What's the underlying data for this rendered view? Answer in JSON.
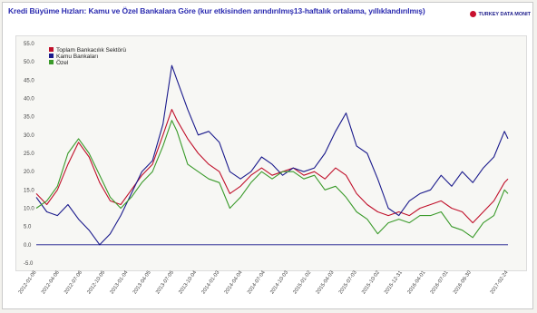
{
  "title": "Kredi Büyüme Hızları: Kamu ve Özel Bankalara Göre (kur etkisinden arındırılmış13-haftalık ortalama, yıllıklandırılmış)",
  "brand_label": "TURKEY DATA MONIT",
  "chart_data": {
    "type": "line",
    "title": "Kredi Büyüme Hızları: Kamu ve Özel Bankalara Göre (kur etkisinden arındırılmış13-haftalık ortalama, yıllıklandırılmış)",
    "xlabel": "",
    "ylabel": "",
    "ylim": [
      -5,
      55
    ],
    "yticks": [
      "55.0",
      "50.0",
      "45.0",
      "40.0",
      "35.0",
      "30.0",
      "25.0",
      "20.0",
      "15.0",
      "10.0",
      "5.0",
      "0.0",
      "-5.0"
    ],
    "x_ticks": [
      "2012-01-06",
      "2012-04-06",
      "2012-07-06",
      "2012-10-05",
      "2013-01-04",
      "2013-04-05",
      "2013-07-05",
      "2013-10-04",
      "2014-01-03",
      "2014-04-04",
      "2014-07-04",
      "2014-10-03",
      "2015-01-02",
      "2015-04-03",
      "2015-07-03",
      "2015-10-02",
      "2015-12-31",
      "2016-04-01",
      "2016-07-01",
      "2016-09-30",
      "2017-02-24"
    ],
    "grid": false,
    "legend_position": "top-left",
    "series": [
      {
        "name": "Toplam Bankacılık Sektörü",
        "color": "#c0102a",
        "values": [
          [
            "2012-01-06",
            14
          ],
          [
            "2012-02-17",
            11
          ],
          [
            "2012-03-30",
            15
          ],
          [
            "2012-05-11",
            22
          ],
          [
            "2012-06-22",
            28
          ],
          [
            "2012-08-03",
            24
          ],
          [
            "2012-09-14",
            17
          ],
          [
            "2012-10-26",
            12
          ],
          [
            "2012-12-07",
            11
          ],
          [
            "2013-01-18",
            15
          ],
          [
            "2013-03-01",
            19
          ],
          [
            "2013-04-12",
            22
          ],
          [
            "2013-05-24",
            30
          ],
          [
            "2013-06-28",
            37
          ],
          [
            "2013-07-19",
            34
          ],
          [
            "2013-08-30",
            29
          ],
          [
            "2013-10-11",
            25
          ],
          [
            "2013-11-22",
            22
          ],
          [
            "2014-01-03",
            20
          ],
          [
            "2014-02-14",
            14
          ],
          [
            "2014-03-28",
            16
          ],
          [
            "2014-05-09",
            19
          ],
          [
            "2014-06-20",
            21
          ],
          [
            "2014-08-01",
            19
          ],
          [
            "2014-09-12",
            20
          ],
          [
            "2014-10-24",
            21
          ],
          [
            "2014-12-05",
            19
          ],
          [
            "2015-01-16",
            20
          ],
          [
            "2015-02-27",
            18
          ],
          [
            "2015-04-10",
            21
          ],
          [
            "2015-05-22",
            19
          ],
          [
            "2015-07-03",
            14
          ],
          [
            "2015-08-14",
            11
          ],
          [
            "2015-09-25",
            9
          ],
          [
            "2015-11-06",
            8
          ],
          [
            "2015-12-18",
            9
          ],
          [
            "2016-01-29",
            8
          ],
          [
            "2016-03-11",
            10
          ],
          [
            "2016-04-22",
            11
          ],
          [
            "2016-06-03",
            12
          ],
          [
            "2016-07-15",
            10
          ],
          [
            "2016-08-26",
            9
          ],
          [
            "2016-10-07",
            6
          ],
          [
            "2016-11-18",
            9
          ],
          [
            "2016-12-30",
            12
          ],
          [
            "2017-02-10",
            17
          ],
          [
            "2017-02-24",
            18
          ]
        ]
      },
      {
        "name": "Kamu Bankaları",
        "color": "#1a1a8c",
        "values": [
          [
            "2012-01-06",
            13
          ],
          [
            "2012-02-17",
            9
          ],
          [
            "2012-03-30",
            8
          ],
          [
            "2012-05-11",
            11
          ],
          [
            "2012-06-22",
            7
          ],
          [
            "2012-08-03",
            4
          ],
          [
            "2012-09-14",
            0
          ],
          [
            "2012-10-26",
            3
          ],
          [
            "2012-12-07",
            8
          ],
          [
            "2013-01-18",
            14
          ],
          [
            "2013-03-01",
            20
          ],
          [
            "2013-04-12",
            23
          ],
          [
            "2013-05-24",
            33
          ],
          [
            "2013-06-28",
            49
          ],
          [
            "2013-07-19",
            45
          ],
          [
            "2013-08-30",
            37
          ],
          [
            "2013-10-11",
            30
          ],
          [
            "2013-11-22",
            31
          ],
          [
            "2014-01-03",
            28
          ],
          [
            "2014-02-14",
            20
          ],
          [
            "2014-03-28",
            18
          ],
          [
            "2014-05-09",
            20
          ],
          [
            "2014-06-20",
            24
          ],
          [
            "2014-08-01",
            22
          ],
          [
            "2014-09-12",
            19
          ],
          [
            "2014-10-24",
            21
          ],
          [
            "2014-12-05",
            20
          ],
          [
            "2015-01-16",
            21
          ],
          [
            "2015-02-27",
            25
          ],
          [
            "2015-04-10",
            31
          ],
          [
            "2015-05-22",
            36
          ],
          [
            "2015-07-03",
            27
          ],
          [
            "2015-08-14",
            25
          ],
          [
            "2015-09-25",
            18
          ],
          [
            "2015-11-06",
            10
          ],
          [
            "2015-12-18",
            8
          ],
          [
            "2016-01-29",
            12
          ],
          [
            "2016-03-11",
            14
          ],
          [
            "2016-04-22",
            15
          ],
          [
            "2016-06-03",
            19
          ],
          [
            "2016-07-15",
            16
          ],
          [
            "2016-08-26",
            20
          ],
          [
            "2016-10-07",
            17
          ],
          [
            "2016-11-18",
            21
          ],
          [
            "2016-12-30",
            24
          ],
          [
            "2017-02-10",
            31
          ],
          [
            "2017-02-24",
            29
          ]
        ]
      },
      {
        "name": "Özel",
        "color": "#3a9a2a",
        "values": [
          [
            "2012-01-06",
            10
          ],
          [
            "2012-02-17",
            12
          ],
          [
            "2012-03-30",
            16
          ],
          [
            "2012-05-11",
            25
          ],
          [
            "2012-06-22",
            29
          ],
          [
            "2012-08-03",
            25
          ],
          [
            "2012-09-14",
            19
          ],
          [
            "2012-10-26",
            13
          ],
          [
            "2012-12-07",
            10
          ],
          [
            "2013-01-18",
            13
          ],
          [
            "2013-03-01",
            17
          ],
          [
            "2013-04-12",
            20
          ],
          [
            "2013-05-24",
            27
          ],
          [
            "2013-06-28",
            34
          ],
          [
            "2013-07-19",
            31
          ],
          [
            "2013-08-30",
            22
          ],
          [
            "2013-10-11",
            20
          ],
          [
            "2013-11-22",
            18
          ],
          [
            "2014-01-03",
            17
          ],
          [
            "2014-02-14",
            10
          ],
          [
            "2014-03-28",
            13
          ],
          [
            "2014-05-09",
            17
          ],
          [
            "2014-06-20",
            20
          ],
          [
            "2014-08-01",
            18
          ],
          [
            "2014-09-12",
            20
          ],
          [
            "2014-10-24",
            20
          ],
          [
            "2014-12-05",
            18
          ],
          [
            "2015-01-16",
            19
          ],
          [
            "2015-02-27",
            15
          ],
          [
            "2015-04-10",
            16
          ],
          [
            "2015-05-22",
            13
          ],
          [
            "2015-07-03",
            9
          ],
          [
            "2015-08-14",
            7
          ],
          [
            "2015-09-25",
            3
          ],
          [
            "2015-11-06",
            6
          ],
          [
            "2015-12-18",
            7
          ],
          [
            "2016-01-29",
            6
          ],
          [
            "2016-03-11",
            8
          ],
          [
            "2016-04-22",
            8
          ],
          [
            "2016-06-03",
            9
          ],
          [
            "2016-07-15",
            5
          ],
          [
            "2016-08-26",
            4
          ],
          [
            "2016-10-07",
            2
          ],
          [
            "2016-11-18",
            6
          ],
          [
            "2016-12-30",
            8
          ],
          [
            "2017-02-10",
            15
          ],
          [
            "2017-02-24",
            14
          ]
        ]
      }
    ]
  }
}
